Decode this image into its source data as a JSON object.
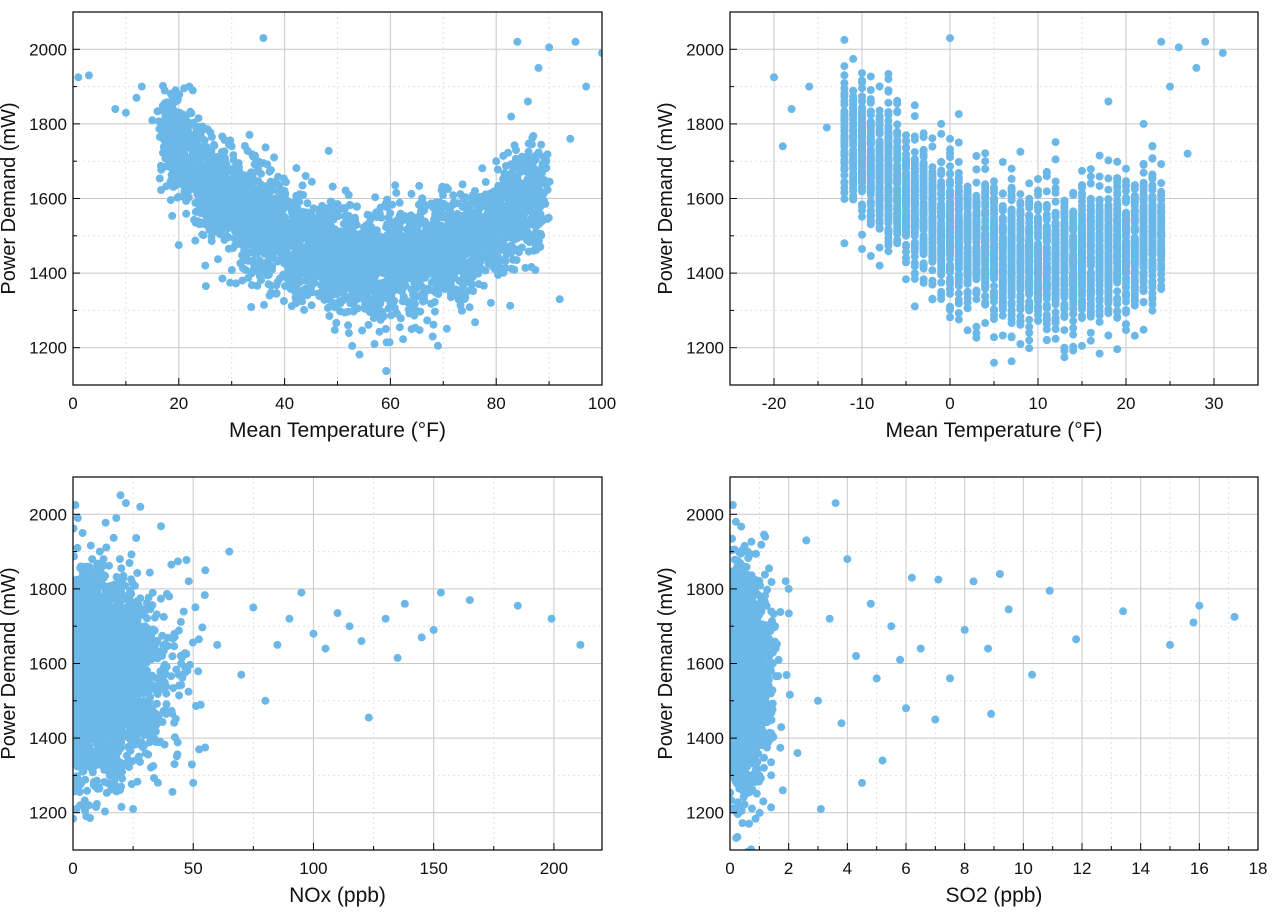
{
  "colors": {
    "point": "#6bb8e8",
    "grid_major": "#c8c8c8",
    "grid_minor": "#e2e2e2",
    "axis": "#000000"
  },
  "chart_data": [
    {
      "type": "scatter",
      "title": "",
      "xlabel": "Mean Temperature (°F)",
      "ylabel": "Power Demand (mW)",
      "xlim": [
        0,
        100
      ],
      "ylim": [
        1100,
        2100
      ],
      "xticks": [
        0,
        20,
        40,
        60,
        80,
        100
      ],
      "yticks": [
        1200,
        1400,
        1600,
        1800,
        2000
      ],
      "grid": true,
      "trend": "U-shaped: demand falls from ~1750 mW near 10°F to a minimum ~1420 mW near 60°F, then rises to ~1750 mW near 90°F",
      "points": [
        [
          1,
          1925
        ],
        [
          3,
          1930
        ],
        [
          8,
          1840
        ],
        [
          10,
          1830
        ],
        [
          12,
          1870
        ],
        [
          13,
          1900
        ],
        [
          15,
          1810
        ],
        [
          18,
          1830
        ],
        [
          20,
          1780
        ],
        [
          20,
          1475
        ],
        [
          22,
          1900
        ],
        [
          25,
          1420
        ],
        [
          28,
          1560
        ],
        [
          30,
          1740
        ],
        [
          32,
          1380
        ],
        [
          36,
          2030
        ],
        [
          38,
          1480
        ],
        [
          40,
          1620
        ],
        [
          42,
          1350
        ],
        [
          45,
          1560
        ],
        [
          48,
          1330
        ],
        [
          50,
          1480
        ],
        [
          52,
          1260
        ],
        [
          55,
          1430
        ],
        [
          57,
          1210
        ],
        [
          58,
          1560
        ],
        [
          60,
          1320
        ],
        [
          62,
          1460
        ],
        [
          64,
          1250
        ],
        [
          66,
          1600
        ],
        [
          68,
          1230
        ],
        [
          69,
          1205
        ],
        [
          70,
          1380
        ],
        [
          72,
          1540
        ],
        [
          74,
          1330
        ],
        [
          76,
          1620
        ],
        [
          78,
          1580
        ],
        [
          79,
          1320
        ],
        [
          80,
          1700
        ],
        [
          82,
          1630
        ],
        [
          84,
          2020
        ],
        [
          86,
          1860
        ],
        [
          88,
          1950
        ],
        [
          90,
          2005
        ],
        [
          92,
          1330
        ],
        [
          94,
          1760
        ],
        [
          95,
          2020
        ],
        [
          97,
          1900
        ],
        [
          100,
          1990
        ]
      ]
    },
    {
      "type": "scatter",
      "title": "",
      "xlabel": "Mean Temperature (°F)",
      "ylabel": "Power Demand (mW)",
      "xlim": [
        -25,
        35
      ],
      "ylim": [
        1100,
        2100
      ],
      "xticks": [
        -20,
        -10,
        0,
        10,
        20,
        30
      ],
      "yticks": [
        1200,
        1400,
        1600,
        1800,
        2000
      ],
      "grid": true,
      "trend": "Same data at integer temperature values (vertical stripes); U-shape with minimum near 10 on the axis",
      "points": [
        [
          -20,
          1925
        ],
        [
          -19,
          1740
        ],
        [
          -18,
          1840
        ],
        [
          -16,
          1900
        ],
        [
          -14,
          1790
        ],
        [
          -12,
          1480
        ],
        [
          -11,
          1600
        ],
        [
          -10,
          1860
        ],
        [
          -8,
          1420
        ],
        [
          -7,
          1890
        ],
        [
          -5,
          1500
        ],
        [
          -4,
          1850
        ],
        [
          -2,
          1380
        ],
        [
          -1,
          1800
        ],
        [
          0,
          2030
        ],
        [
          0,
          1310
        ],
        [
          1,
          1750
        ],
        [
          2,
          1350
        ],
        [
          4,
          1700
        ],
        [
          5,
          1300
        ],
        [
          7,
          1620
        ],
        [
          8,
          1210
        ],
        [
          10,
          1580
        ],
        [
          11,
          1220
        ],
        [
          13,
          1200
        ],
        [
          14,
          1560
        ],
        [
          16,
          1240
        ],
        [
          17,
          1560
        ],
        [
          18,
          1860
        ],
        [
          19,
          1280
        ],
        [
          20,
          1680
        ],
        [
          21,
          1380
        ],
        [
          22,
          1800
        ],
        [
          23,
          1330
        ],
        [
          24,
          2020
        ],
        [
          24,
          1460
        ],
        [
          25,
          1900
        ],
        [
          26,
          2005
        ],
        [
          27,
          1720
        ],
        [
          28,
          1950
        ],
        [
          29,
          2020
        ],
        [
          31,
          1990
        ]
      ]
    },
    {
      "type": "scatter",
      "title": "",
      "xlabel": "NOx (ppb)",
      "ylabel": "Power Demand (mW)",
      "xlim": [
        0,
        220
      ],
      "ylim": [
        1100,
        2100
      ],
      "xticks": [
        0,
        50,
        100,
        150,
        200
      ],
      "yticks": [
        1200,
        1400,
        1600,
        1800,
        2000
      ],
      "grid": true,
      "trend": "Dense cluster at low NOx (0–50 ppb) spanning 1200–2000 mW; sparse points out to ~210 ppb around 1600–1800 mW",
      "points": [
        [
          1,
          2025
        ],
        [
          2,
          1990
        ],
        [
          4,
          1950
        ],
        [
          3,
          1220
        ],
        [
          5,
          1205
        ],
        [
          8,
          1880
        ],
        [
          10,
          1840
        ],
        [
          12,
          1530
        ],
        [
          15,
          1720
        ],
        [
          18,
          1990
        ],
        [
          20,
          1270
        ],
        [
          22,
          2030
        ],
        [
          25,
          1210
        ],
        [
          28,
          2020
        ],
        [
          30,
          1700
        ],
        [
          35,
          1560
        ],
        [
          40,
          1780
        ],
        [
          45,
          1600
        ],
        [
          50,
          1280
        ],
        [
          55,
          1850
        ],
        [
          60,
          1650
        ],
        [
          65,
          1900
        ],
        [
          70,
          1570
        ],
        [
          75,
          1750
        ],
        [
          80,
          1500
        ],
        [
          85,
          1650
        ],
        [
          90,
          1720
        ],
        [
          95,
          1790
        ],
        [
          100,
          1680
        ],
        [
          105,
          1640
        ],
        [
          110,
          1735
        ],
        [
          115,
          1700
        ],
        [
          120,
          1660
        ],
        [
          123,
          1455
        ],
        [
          130,
          1720
        ],
        [
          135,
          1615
        ],
        [
          138,
          1760
        ],
        [
          145,
          1670
        ],
        [
          150,
          1690
        ],
        [
          153,
          1790
        ],
        [
          165,
          1770
        ],
        [
          185,
          1755
        ],
        [
          199,
          1720
        ],
        [
          211,
          1650
        ]
      ]
    },
    {
      "type": "scatter",
      "title": "",
      "xlabel": "SO2 (ppb)",
      "ylabel": "Power Demand (mW)",
      "xlim": [
        0,
        18
      ],
      "ylim": [
        1100,
        2100
      ],
      "xticks": [
        0,
        2,
        4,
        6,
        8,
        10,
        12,
        14,
        16,
        18
      ],
      "yticks": [
        1200,
        1400,
        1600,
        1800,
        2000
      ],
      "grid": true,
      "trend": "Dense cluster at SO2 below ~1.5 ppb; sparse points out to ~17 ppb between ~1450 and ~1850 mW",
      "points": [
        [
          0.1,
          2025
        ],
        [
          0.2,
          1980
        ],
        [
          0.3,
          1220
        ],
        [
          0.4,
          1205
        ],
        [
          0.6,
          1900
        ],
        [
          0.8,
          1760
        ],
        [
          1,
          1300
        ],
        [
          1.2,
          1940
        ],
        [
          1.5,
          1640
        ],
        [
          1.8,
          1260
        ],
        [
          2,
          1800
        ],
        [
          2.3,
          1360
        ],
        [
          2.6,
          1930
        ],
        [
          3,
          1500
        ],
        [
          3.1,
          1210
        ],
        [
          3.4,
          1720
        ],
        [
          3.6,
          2030
        ],
        [
          3.8,
          1440
        ],
        [
          4,
          1880
        ],
        [
          4.3,
          1620
        ],
        [
          4.5,
          1280
        ],
        [
          4.8,
          1760
        ],
        [
          5,
          1560
        ],
        [
          5.2,
          1340
        ],
        [
          5.5,
          1700
        ],
        [
          5.8,
          1610
        ],
        [
          6,
          1480
        ],
        [
          6.2,
          1830
        ],
        [
          6.5,
          1640
        ],
        [
          7,
          1450
        ],
        [
          7.1,
          1825
        ],
        [
          7.5,
          1560
        ],
        [
          8,
          1690
        ],
        [
          8.3,
          1820
        ],
        [
          8.8,
          1640
        ],
        [
          8.9,
          1465
        ],
        [
          9.2,
          1840
        ],
        [
          9.5,
          1745
        ],
        [
          10.3,
          1570
        ],
        [
          10.9,
          1795
        ],
        [
          11.8,
          1665
        ],
        [
          13.4,
          1740
        ],
        [
          15,
          1650
        ],
        [
          15.8,
          1710
        ],
        [
          16,
          1755
        ],
        [
          17.2,
          1725
        ]
      ]
    }
  ]
}
